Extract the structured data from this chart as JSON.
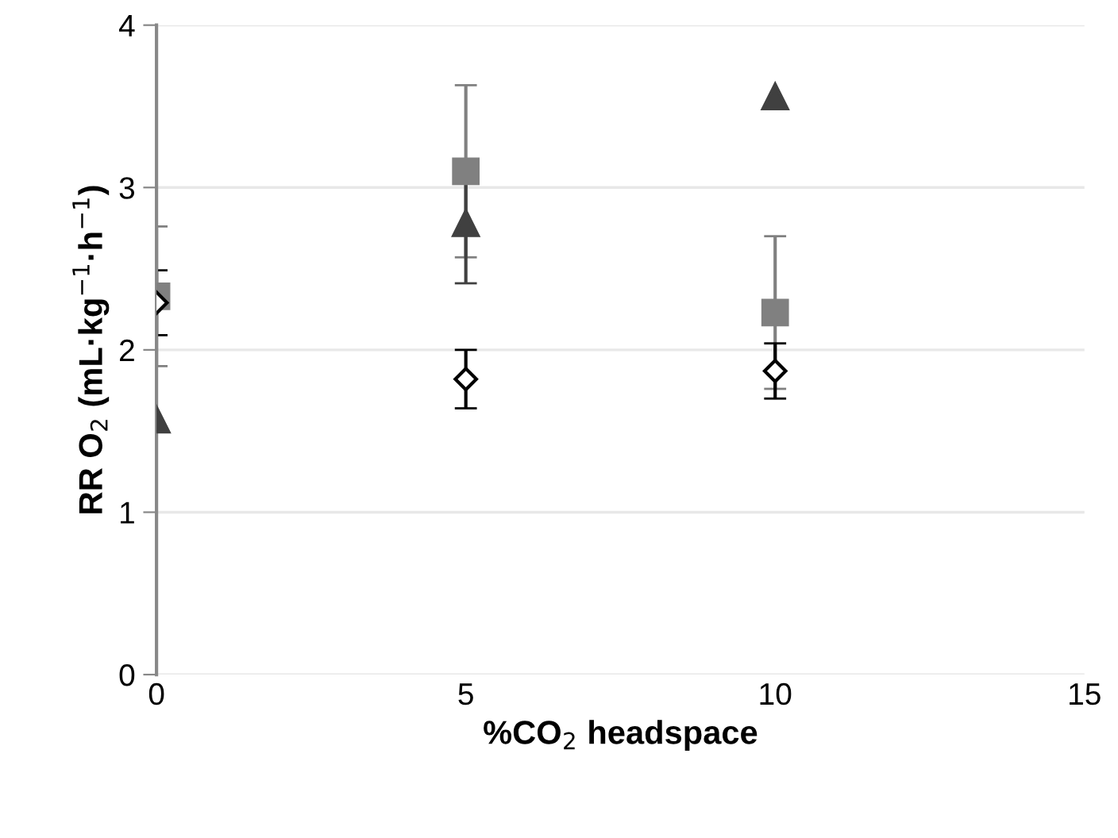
{
  "chart_data": {
    "type": "scatter",
    "xlabel": "%CO$_{2}$ headspace",
    "ylabel": "RR O$_{2}$ (mL·kg$^{−1}$·h$^{−1}$)",
    "x": [
      0,
      5,
      10
    ],
    "xlim": [
      0,
      15
    ],
    "xticks": [
      0,
      5,
      10,
      15
    ],
    "ylim": [
      0,
      4
    ],
    "yticks": [
      0,
      1,
      2,
      3,
      4
    ],
    "grid": "y",
    "legend": false,
    "series": [
      {
        "color": "#808080",
        "marker": "square",
        "values": [
          2.33,
          3.1,
          2.23
        ],
        "errors": [
          0.43,
          0.53,
          0.47
        ]
      },
      {
        "color": "#404040",
        "marker": "triangle",
        "values": [
          1.57,
          2.78,
          3.56
        ],
        "errors": [
          null,
          0.37,
          null
        ]
      },
      {
        "color": "#ffffff",
        "marker": "diamond",
        "values": [
          2.29,
          1.82,
          1.87
        ],
        "errors": [
          0.2,
          0.18,
          0.17
        ]
      }
    ]
  }
}
